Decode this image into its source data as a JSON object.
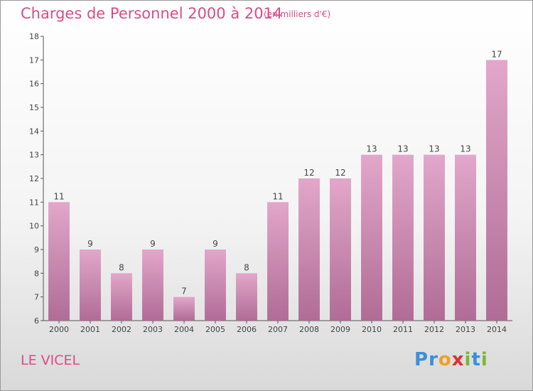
{
  "header": {
    "title": "Charges de Personnel 2000 à 2014",
    "unit": "(en milliers d'€)"
  },
  "footer": {
    "commune": "LE VICEL",
    "logo": "Proxiti"
  },
  "colors": {
    "bar_top": "#e2a7ca",
    "bar_bottom": "#b06c96",
    "title": "#d94d86",
    "logo_letters": [
      "#3a8fd9",
      "#3a8fd9",
      "#f0a020",
      "#e03030",
      "#7ab82f",
      "#3a8fd9",
      "#7ab82f"
    ]
  },
  "chart_data": {
    "type": "bar",
    "title": "Charges de Personnel 2000 à 2014",
    "categories": [
      "2000",
      "2001",
      "2002",
      "2003",
      "2004",
      "2005",
      "2006",
      "2007",
      "2008",
      "2009",
      "2010",
      "2011",
      "2012",
      "2013",
      "2014"
    ],
    "values": [
      11,
      9,
      8,
      9,
      7,
      9,
      8,
      11,
      12,
      12,
      13,
      13,
      13,
      13,
      17
    ],
    "xlabel": "",
    "ylabel": "",
    "ylim": [
      6,
      18
    ],
    "yticks": [
      6,
      7,
      8,
      9,
      10,
      11,
      12,
      13,
      14,
      15,
      16,
      17,
      18
    ],
    "grid": false,
    "legend": "none"
  }
}
